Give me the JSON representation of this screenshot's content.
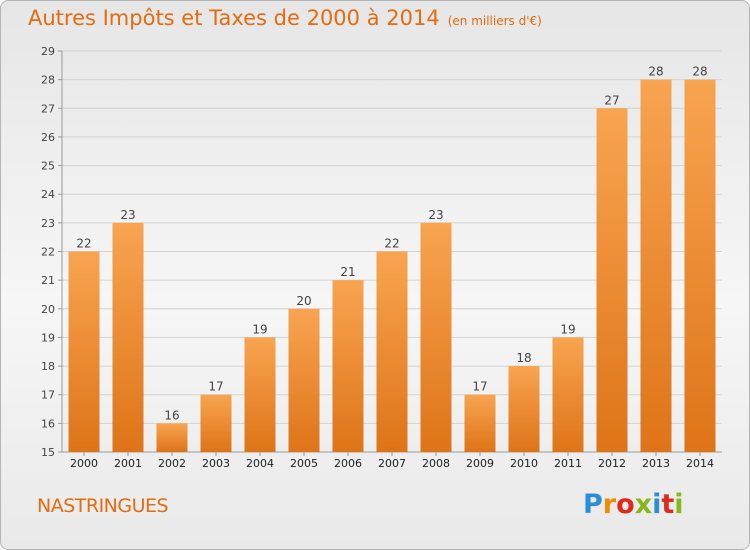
{
  "header": {
    "title": "Autres Impôts et Taxes de 2000 à 2014",
    "subtitle": "(en milliers d'€)"
  },
  "footer": {
    "commune": "NASTRINGUES",
    "logo": [
      "P",
      "r",
      "o",
      "x",
      "i",
      "t",
      "i"
    ]
  },
  "colors": {
    "title": "#e36b10",
    "bar_top": "#f8a450",
    "bar_bottom": "#de7418",
    "logo": [
      "#2a8fd8",
      "#f18c00",
      "#e0281c",
      "#86b81c",
      "#2a8fd8",
      "#e0281c",
      "#86b81c"
    ]
  },
  "chart_data": {
    "type": "bar",
    "title": "Autres Impôts et Taxes de 2000 à 2014",
    "subtitle": "(en milliers d'€)",
    "categories": [
      "2000",
      "2001",
      "2002",
      "2003",
      "2004",
      "2005",
      "2006",
      "2007",
      "2008",
      "2009",
      "2010",
      "2011",
      "2012",
      "2013",
      "2014"
    ],
    "values": [
      22,
      23,
      16,
      17,
      19,
      20,
      21,
      22,
      23,
      17,
      18,
      19,
      27,
      28,
      28
    ],
    "ylim": [
      15,
      29
    ],
    "yticks": [
      "15",
      "16",
      "17",
      "18",
      "19",
      "20",
      "21",
      "22",
      "23",
      "24",
      "25",
      "26",
      "27",
      "28",
      "29"
    ],
    "grid": true,
    "xlabel": "",
    "ylabel": ""
  }
}
